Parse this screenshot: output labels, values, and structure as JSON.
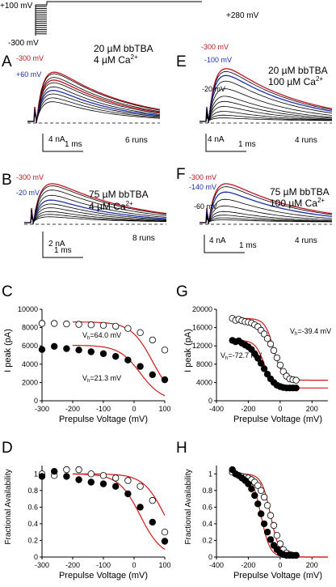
{
  "protocol": {
    "hold": "+100 mV",
    "step_lo": "-300 mV",
    "tail": "+280 mV"
  },
  "panels": {
    "A": {
      "letter": "A",
      "cond1": "20 µM bbTBA",
      "cond2": "4 µM Ca",
      "sup": "2+",
      "v_red": "-300 mV",
      "v_blue": "+60 mV",
      "scale_y": "4 nA",
      "scale_x": "1 ms",
      "runs": "6 runs"
    },
    "B": {
      "letter": "B",
      "cond1": "75 µM bbTBA",
      "cond2": "4 µM Ca",
      "sup": "2+",
      "v_red": "-300 mV",
      "v_blue": "-20 mV",
      "scale_y": "2 nA",
      "scale_x": "1 ms",
      "runs": "8 runs"
    },
    "E": {
      "letter": "E",
      "cond1": "20 µM bbTBA",
      "cond2": "100 µM Ca",
      "sup": "2+",
      "v_red": "-300 mV",
      "v_blue": "-100 mV",
      "v_black": "-20 mV",
      "scale_y": "4 nA",
      "scale_x": "1 ms",
      "runs": "4 runs"
    },
    "F": {
      "letter": "F",
      "cond1": "75 µM bbTBA",
      "cond2": "100 µM Ca",
      "sup": "2+",
      "v_red": "-300 mV",
      "v_blue": "-140 mV",
      "v_black": "-60 mV",
      "scale_y": "4 nA",
      "scale_x": "1 ms",
      "runs": "4 runs"
    },
    "C": {
      "letter": "C",
      "xlabel": "Prepulse Voltage (mV)",
      "ylabel": "I peak (pA)",
      "ann_open": "V",
      "ann_open_sub": "h",
      "ann_open_val": "=64.0 mV",
      "ann_filled": "V",
      "ann_filled_sub": "h",
      "ann_filled_val": "=21.3 mV"
    },
    "D": {
      "letter": "D",
      "xlabel": "Prepulse Voltage (mV)",
      "ylabel": "Fractional Availability"
    },
    "G": {
      "letter": "G",
      "xlabel": "Prepulse Voltage (mV)",
      "ylabel": "I peak (pA)",
      "ann_open": "V",
      "ann_open_sub": "h",
      "ann_open_val": "=-39.4 mV",
      "ann_filled": "V",
      "ann_filled_sub": "h",
      "ann_filled_val": "=-72.7 mV"
    },
    "H": {
      "letter": "H",
      "xlabel": "Prepulse Voltage (mV)",
      "ylabel": "Fractional Availability"
    }
  },
  "colors": {
    "red": "#c0141e",
    "blue": "#1c2fb0",
    "fit": "#d01818"
  },
  "chart_data": [
    {
      "id": "C",
      "type": "scatter",
      "xlabel": "Prepulse Voltage (mV)",
      "ylabel": "I peak (pA)",
      "xlim": [
        -300,
        100
      ],
      "ylim": [
        0,
        10000
      ],
      "xticks": [
        -300,
        -200,
        -100,
        0,
        100
      ],
      "yticks": [
        0,
        2000,
        4000,
        6000,
        8000,
        10000
      ],
      "series": [
        {
          "marker": "open",
          "x": [
            -300,
            -260,
            -220,
            -180,
            -140,
            -100,
            -60,
            -20,
            20,
            60,
            100
          ],
          "y": [
            8450,
            8450,
            8400,
            8350,
            8300,
            8250,
            8150,
            7900,
            7450,
            6650,
            5550
          ]
        },
        {
          "marker": "filled",
          "x": [
            -300,
            -260,
            -220,
            -180,
            -140,
            -100,
            -60,
            -20,
            20,
            60,
            100
          ],
          "y": [
            5600,
            5950,
            5700,
            5550,
            5350,
            5150,
            4850,
            4450,
            3750,
            2850,
            2300
          ]
        }
      ]
    },
    {
      "id": "D",
      "type": "scatter",
      "xlabel": "Prepulse Voltage (mV)",
      "ylabel": "Fractional Availability",
      "xlim": [
        -300,
        100
      ],
      "ylim": [
        0,
        1.1
      ],
      "xticks": [
        -300,
        -200,
        -100,
        0,
        100
      ],
      "yticks": [
        0,
        0.2,
        0.4,
        0.6,
        0.8,
        1
      ],
      "series": [
        {
          "marker": "open",
          "x": [
            -300,
            -260,
            -220,
            -180,
            -140,
            -100,
            -60,
            -20,
            20,
            60,
            100
          ],
          "y": [
            1.0,
            0.98,
            1.05,
            1.05,
            1.0,
            0.98,
            0.95,
            0.92,
            0.85,
            0.68,
            0.3
          ]
        },
        {
          "marker": "filled",
          "x": [
            -300,
            -260,
            -220,
            -180,
            -140,
            -100,
            -60,
            -20,
            20,
            60,
            100
          ],
          "y": [
            0.97,
            1.03,
            0.97,
            0.93,
            0.9,
            0.88,
            0.85,
            0.76,
            0.6,
            0.42,
            0.19
          ]
        }
      ]
    },
    {
      "id": "G",
      "type": "scatter",
      "xlabel": "Prepulse Voltage (mV)",
      "ylabel": "I peak (pA)",
      "xlim": [
        -400,
        300
      ],
      "ylim": [
        0,
        20000
      ],
      "xticks": [
        -400,
        -200,
        0,
        200
      ],
      "yticks": [
        0,
        4000,
        8000,
        12000,
        16000,
        20000
      ],
      "series": [
        {
          "marker": "open",
          "x": [
            -300,
            -280,
            -260,
            -240,
            -220,
            -200,
            -180,
            -160,
            -140,
            -120,
            -100,
            -80,
            -60,
            -40,
            -20,
            0,
            20,
            40,
            60,
            80,
            100
          ],
          "y": [
            18000,
            17600,
            17800,
            17500,
            17300,
            17200,
            17000,
            16600,
            16200,
            15400,
            14600,
            13600,
            12400,
            11000,
            9400,
            7800,
            6400,
            5400,
            4800,
            4600,
            4500
          ]
        },
        {
          "marker": "filled",
          "x": [
            -300,
            -280,
            -260,
            -240,
            -220,
            -200,
            -180,
            -160,
            -140,
            -120,
            -100,
            -80,
            -60,
            -40,
            -20,
            0,
            20,
            40,
            60,
            80,
            100
          ],
          "y": [
            13200,
            12900,
            13100,
            12600,
            12200,
            11800,
            11200,
            10300,
            9300,
            8200,
            7000,
            5800,
            4800,
            4000,
            3400,
            3100,
            2900,
            2800,
            2800,
            2800,
            2800
          ]
        }
      ]
    },
    {
      "id": "H",
      "type": "scatter",
      "xlabel": "Prepulse Voltage (mV)",
      "ylabel": "Fractional Availability",
      "xlim": [
        -400,
        300
      ],
      "ylim": [
        0,
        1.1
      ],
      "xticks": [
        -400,
        -200,
        0,
        200
      ],
      "yticks": [
        0,
        0.2,
        0.4,
        0.6,
        0.8,
        1
      ],
      "series": [
        {
          "marker": "open",
          "x": [
            -300,
            -280,
            -260,
            -240,
            -220,
            -200,
            -180,
            -160,
            -140,
            -120,
            -100,
            -80,
            -60,
            -40,
            -20,
            0,
            20,
            40,
            60,
            80,
            100
          ],
          "y": [
            1.02,
            1.0,
            0.98,
            0.97,
            0.96,
            0.95,
            0.93,
            0.9,
            0.86,
            0.8,
            0.72,
            0.62,
            0.5,
            0.38,
            0.26,
            0.16,
            0.09,
            0.05,
            0.03,
            0.02,
            0.02
          ]
        },
        {
          "marker": "filled",
          "x": [
            -300,
            -280,
            -260,
            -240,
            -220,
            -200,
            -180,
            -160,
            -140,
            -120,
            -100,
            -80,
            -60,
            -40,
            -20,
            0,
            20,
            40,
            60,
            80,
            100
          ],
          "y": [
            1.05,
            1.0,
            0.98,
            0.95,
            0.92,
            0.88,
            0.82,
            0.74,
            0.64,
            0.52,
            0.4,
            0.3,
            0.21,
            0.14,
            0.09,
            0.05,
            0.03,
            0.02,
            0.02,
            0.02,
            0.02
          ]
        }
      ]
    }
  ]
}
